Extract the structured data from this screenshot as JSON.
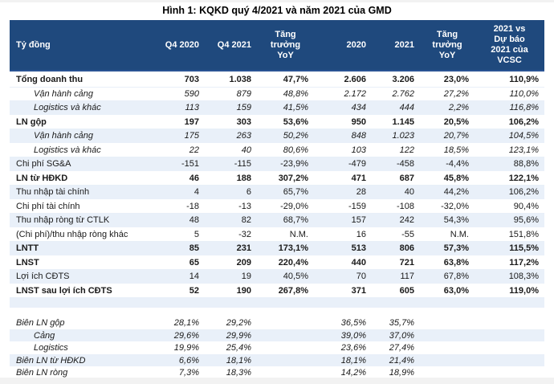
{
  "title": "Hình 1: KQKD quý 4/2021 và năm 2021 của GMD",
  "colors": {
    "header_bg": "#1F497D",
    "header_text": "#FFFFFF",
    "stripe": "#E9F0F9",
    "header_border": "#2A5494",
    "page_strip": "#F2F2F2"
  },
  "table": {
    "columns": [
      "Tỷ đồng",
      "Q4 2020",
      "Q4 2021",
      "Tăng\ntrưởng\nYoY",
      "2020",
      "2021",
      "Tăng\ntrưởng\nYoY",
      "2021 vs\nDự báo\n2021 của\nVCSC"
    ],
    "rows": [
      {
        "label": "Tổng doanh thu",
        "style": "bold",
        "indent": 0,
        "shade": false,
        "section": "main",
        "values": [
          "703",
          "1.038",
          "47,7%",
          "2.606",
          "3.206",
          "23,0%",
          "110,9%"
        ]
      },
      {
        "label": "Vận hành cảng",
        "style": "italic",
        "indent": 1,
        "shade": false,
        "section": "main",
        "values": [
          "590",
          "879",
          "48,8%",
          "2.172",
          "2.762",
          "27,2%",
          "110,0%"
        ]
      },
      {
        "label": "Logistics và khác",
        "style": "italic",
        "indent": 1,
        "shade": true,
        "section": "main",
        "values": [
          "113",
          "159",
          "41,5%",
          "434",
          "444",
          "2,2%",
          "116,8%"
        ]
      },
      {
        "label": "LN gộp",
        "style": "bold",
        "indent": 0,
        "shade": false,
        "section": "main",
        "values": [
          "197",
          "303",
          "53,6%",
          "950",
          "1.145",
          "20,5%",
          "106,2%"
        ]
      },
      {
        "label": "Vận hành cảng",
        "style": "italic",
        "indent": 1,
        "shade": true,
        "section": "main",
        "values": [
          "175",
          "263",
          "50,2%",
          "848",
          "1.023",
          "20,7%",
          "104,5%"
        ]
      },
      {
        "label": "Logistics và khác",
        "style": "italic",
        "indent": 1,
        "shade": false,
        "section": "main",
        "values": [
          "22",
          "40",
          "80,6%",
          "103",
          "122",
          "18,5%",
          "123,1%"
        ]
      },
      {
        "label": "Chi phí SG&A",
        "style": "normal",
        "indent": 0,
        "shade": true,
        "section": "main",
        "values": [
          "-151",
          "-115",
          "-23,9%",
          "-479",
          "-458",
          "-4,4%",
          "88,8%"
        ]
      },
      {
        "label": "LN từ HĐKD",
        "style": "bold",
        "indent": 0,
        "shade": false,
        "section": "main",
        "values": [
          "46",
          "188",
          "307,2%",
          "471",
          "687",
          "45,8%",
          "122,1%"
        ]
      },
      {
        "label": "Thu nhập tài chính",
        "style": "normal",
        "indent": 0,
        "shade": true,
        "section": "main",
        "values": [
          "4",
          "6",
          "65,7%",
          "28",
          "40",
          "44,2%",
          "106,2%"
        ]
      },
      {
        "label": "Chi phí tài chính",
        "style": "normal",
        "indent": 0,
        "shade": false,
        "section": "main",
        "values": [
          "-18",
          "-13",
          "-29,0%",
          "-159",
          "-108",
          "-32,0%",
          "90,4%"
        ]
      },
      {
        "label": "Thu nhập ròng từ CTLK",
        "style": "normal",
        "indent": 0,
        "shade": true,
        "section": "main",
        "values": [
          "48",
          "82",
          "68,7%",
          "157",
          "242",
          "54,3%",
          "95,6%"
        ]
      },
      {
        "label": "(Chi phí)/thu nhập ròng khác",
        "style": "normal",
        "indent": 0,
        "shade": false,
        "section": "main",
        "values": [
          "5",
          "-32",
          "N.M.",
          "16",
          "-55",
          "N.M.",
          "151,8%"
        ]
      },
      {
        "label": "LNTT",
        "style": "bold",
        "indent": 0,
        "shade": true,
        "section": "main",
        "values": [
          "85",
          "231",
          "173,1%",
          "513",
          "806",
          "57,3%",
          "115,5%"
        ]
      },
      {
        "label": "LNST",
        "style": "bold",
        "indent": 0,
        "shade": false,
        "section": "main",
        "values": [
          "65",
          "209",
          "220,4%",
          "440",
          "721",
          "63,8%",
          "117,2%"
        ]
      },
      {
        "label": "Lợi ích CĐTS",
        "style": "normal",
        "indent": 0,
        "shade": true,
        "section": "main",
        "values": [
          "14",
          "19",
          "40,5%",
          "70",
          "117",
          "67,8%",
          "108,3%"
        ]
      },
      {
        "label": "LNST sau lợi ích CĐTS",
        "style": "bold",
        "indent": 0,
        "shade": false,
        "section": "main",
        "values": [
          "52",
          "190",
          "267,8%",
          "371",
          "605",
          "63,0%",
          "119,0%"
        ]
      },
      {
        "label": "",
        "style": "normal",
        "indent": 0,
        "shade": true,
        "section": "spacer",
        "values": [
          "",
          "",
          "",
          "",
          "",
          "",
          ""
        ]
      },
      {
        "label": "",
        "style": "normal",
        "indent": 0,
        "shade": false,
        "section": "spacer",
        "values": [
          "",
          "",
          "",
          "",
          "",
          "",
          ""
        ]
      },
      {
        "label": "Biên LN gộp",
        "style": "italic",
        "indent": 0,
        "shade": false,
        "section": "margins",
        "values": [
          "28,1%",
          "29,2%",
          "",
          "36,5%",
          "35,7%",
          "",
          ""
        ]
      },
      {
        "label": "Cảng",
        "style": "italic",
        "indent": 1,
        "shade": true,
        "section": "margins",
        "values": [
          "29,6%",
          "29,9%",
          "",
          "39,0%",
          "37,0%",
          "",
          ""
        ]
      },
      {
        "label": "Logistics",
        "style": "italic",
        "indent": 1,
        "shade": false,
        "section": "margins",
        "values": [
          "19,9%",
          "25,4%",
          "",
          "23,6%",
          "27,4%",
          "",
          ""
        ]
      },
      {
        "label": "Biên LN từ HĐKD",
        "style": "italic",
        "indent": 0,
        "shade": true,
        "section": "margins",
        "values": [
          "6,6%",
          "18,1%",
          "",
          "18,1%",
          "21,4%",
          "",
          ""
        ]
      },
      {
        "label": "Biên LN ròng",
        "style": "italic",
        "indent": 0,
        "shade": false,
        "section": "margins",
        "values": [
          "7,3%",
          "18,3%",
          "",
          "14,2%",
          "18,9%",
          "",
          ""
        ]
      }
    ]
  }
}
